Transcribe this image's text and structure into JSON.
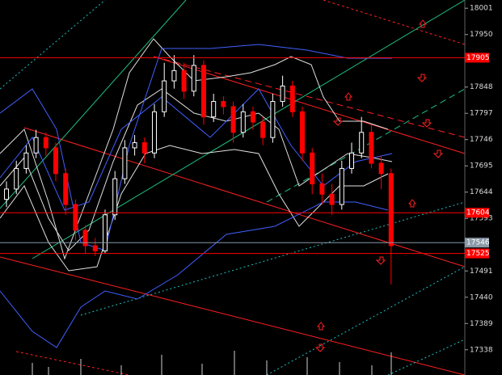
{
  "chart_data": {
    "type": "candlestick",
    "ylim": [
      17289,
      18017
    ],
    "yticks": [
      18001,
      17950,
      17848,
      17797,
      17746,
      17695,
      17644,
      17593,
      17491,
      17440,
      17389,
      17338
    ],
    "up_color": "#ffffff",
    "down_color": "#ff0000",
    "open": [
      17630,
      17650,
      17690,
      17720,
      17750,
      17730,
      17680,
      17620,
      17570,
      17540,
      17530,
      17600,
      17670,
      17730,
      17740,
      17720,
      17800,
      17860,
      17880,
      17840,
      17890,
      17790,
      17820,
      17810,
      17760,
      17800,
      17780,
      17750,
      17820,
      17850,
      17800,
      17720,
      17660,
      17640,
      17620,
      17690,
      17720,
      17760,
      17700,
      17680
    ],
    "high": [
      17665,
      17705,
      17735,
      17765,
      17760,
      17740,
      17690,
      17630,
      17580,
      17555,
      17610,
      17685,
      17745,
      17755,
      17750,
      17815,
      17895,
      17910,
      17895,
      17910,
      17900,
      17835,
      17830,
      17820,
      17815,
      17810,
      17790,
      17835,
      17870,
      17860,
      17810,
      17730,
      17680,
      17660,
      17705,
      17740,
      17790,
      17775,
      17715,
      17690
    ],
    "low": [
      17615,
      17640,
      17680,
      17710,
      17715,
      17665,
      17600,
      17550,
      17525,
      17520,
      17525,
      17590,
      17660,
      17715,
      17700,
      17710,
      17790,
      17845,
      17825,
      17830,
      17775,
      17780,
      17795,
      17740,
      17750,
      17765,
      17735,
      17740,
      17810,
      17790,
      17705,
      17640,
      17620,
      17600,
      17610,
      17680,
      17710,
      17690,
      17650,
      17465
    ],
    "close": [
      17650,
      17690,
      17720,
      17750,
      17730,
      17680,
      17620,
      17570,
      17540,
      17530,
      17600,
      17670,
      17730,
      17740,
      17720,
      17800,
      17860,
      17880,
      17840,
      17890,
      17790,
      17820,
      17810,
      17760,
      17800,
      17780,
      17750,
      17820,
      17850,
      17800,
      17720,
      17660,
      17640,
      17620,
      17690,
      17720,
      17760,
      17700,
      17680,
      17540
    ],
    "levels": [
      {
        "value": 17905,
        "color": "#ff0000"
      },
      {
        "value": 17604,
        "color": "#ff0000"
      },
      {
        "value": 17546,
        "color": "#8a9aa8"
      },
      {
        "value": 17525,
        "color": "#ff0000"
      }
    ]
  }
}
